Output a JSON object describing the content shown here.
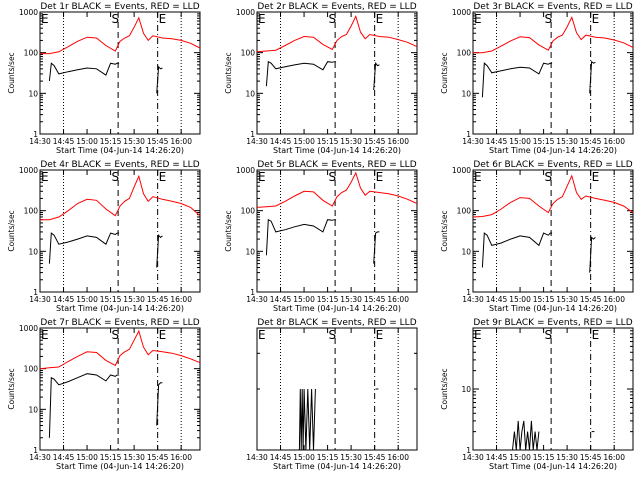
{
  "common": {
    "xlabel": "Start Time (04-Jun-14 14:26:20)",
    "ylabel": "Counts/sec",
    "x_ticks": [
      "14:30",
      "14:45",
      "15:00",
      "15:15",
      "15:30",
      "15:45",
      "16:00"
    ],
    "x_tick_values": [
      14.5,
      14.75,
      15.0,
      15.25,
      15.5,
      15.75,
      16.0
    ],
    "xlim": [
      14.5,
      16.2
    ],
    "markers": {
      "E_left": "E",
      "S": "S",
      "E_right": "E"
    },
    "colors": {
      "events": "#000000",
      "lld": "#ff0000"
    },
    "legend": "BLACK = Events, RED = LLD"
  },
  "chart_data": [
    {
      "id": "det1r",
      "type": "line",
      "title": "Det 1r BLACK = Events, RED = LLD",
      "xlabel": "Start Time (04-Jun-14 14:26:20)",
      "ylabel": "Counts/sec",
      "yscale": "log",
      "ylim": [
        1,
        1000
      ],
      "y_ticks": [
        "1",
        "10",
        "100",
        "1000"
      ],
      "vlines": {
        "dotted_left": 14.75,
        "dashed_S": 15.33,
        "dashdot_E": 15.75,
        "dotted_right": 16.0
      },
      "series": [
        {
          "color": "red",
          "x": [
            14.5,
            14.6,
            14.7,
            14.8,
            14.9,
            15.0,
            15.1,
            15.2,
            15.3,
            15.35,
            15.4,
            15.45,
            15.5,
            15.55,
            15.6,
            15.65,
            15.7,
            15.8,
            15.9,
            16.0,
            16.1,
            16.2
          ],
          "y": [
            95,
            95,
            105,
            140,
            190,
            240,
            230,
            150,
            110,
            190,
            230,
            260,
            420,
            720,
            300,
            200,
            260,
            230,
            220,
            200,
            170,
            130
          ]
        },
        {
          "color": "black",
          "x": [
            14.6,
            14.62,
            14.65,
            14.7,
            14.8,
            14.9,
            15.0,
            15.1,
            15.2,
            15.25,
            15.3,
            15.32,
            15.34
          ],
          "y": [
            20,
            55,
            48,
            30,
            34,
            38,
            42,
            40,
            28,
            55,
            52,
            55,
            55
          ]
        },
        {
          "color": "black",
          "x": [
            15.74,
            15.76,
            15.78,
            15.8
          ],
          "y": [
            10,
            45,
            40,
            42
          ]
        }
      ]
    },
    {
      "id": "det2r",
      "type": "line",
      "title": "Det 2r BLACK = Events, RED = LLD",
      "xlabel": "Start Time (04-Jun-14 14:26:20)",
      "ylabel": "Counts/sec",
      "yscale": "log",
      "ylim": [
        1,
        1000
      ],
      "y_ticks": [
        "1",
        "10",
        "100",
        "1000"
      ],
      "vlines": {
        "dotted_left": 14.75,
        "dashed_S": 15.33,
        "dashdot_E": 15.75,
        "dotted_right": 16.0
      },
      "series": [
        {
          "color": "red",
          "x": [
            14.5,
            14.6,
            14.7,
            14.8,
            14.9,
            15.0,
            15.1,
            15.2,
            15.3,
            15.35,
            15.4,
            15.45,
            15.5,
            15.55,
            15.6,
            15.65,
            15.7,
            15.8,
            15.9,
            16.0,
            16.1,
            16.2
          ],
          "y": [
            105,
            110,
            115,
            150,
            200,
            250,
            240,
            160,
            120,
            200,
            250,
            280,
            450,
            780,
            320,
            220,
            280,
            250,
            240,
            210,
            180,
            140
          ]
        },
        {
          "color": "black",
          "x": [
            14.6,
            14.62,
            14.65,
            14.7,
            14.8,
            14.9,
            15.0,
            15.1,
            15.2,
            15.25,
            15.3,
            15.32,
            15.34
          ],
          "y": [
            15,
            60,
            55,
            40,
            45,
            50,
            55,
            52,
            38,
            60,
            58,
            60,
            60
          ]
        },
        {
          "color": "black",
          "x": [
            15.74,
            15.76,
            15.78,
            15.8
          ],
          "y": [
            12,
            55,
            48,
            50
          ]
        }
      ]
    },
    {
      "id": "det3r",
      "type": "line",
      "title": "Det 3r BLACK = Events, RED = LLD",
      "xlabel": "Start Time (04-Jun-14 14:26:20)",
      "ylabel": "Counts/sec",
      "yscale": "log",
      "ylim": [
        1,
        1000
      ],
      "y_ticks": [
        "1",
        "10",
        "100",
        "1000"
      ],
      "vlines": {
        "dotted_left": 14.75,
        "dashed_S": 15.33,
        "dashdot_E": 15.75,
        "dotted_right": 16.0
      },
      "series": [
        {
          "color": "red",
          "x": [
            14.5,
            14.6,
            14.7,
            14.8,
            14.9,
            15.0,
            15.1,
            15.2,
            15.3,
            15.35,
            15.4,
            15.45,
            15.5,
            15.55,
            15.6,
            15.65,
            15.7,
            15.8,
            15.9,
            16.0,
            16.1,
            16.2
          ],
          "y": [
            100,
            100,
            110,
            145,
            195,
            245,
            235,
            155,
            115,
            195,
            240,
            270,
            430,
            740,
            310,
            210,
            270,
            240,
            230,
            205,
            175,
            135
          ]
        },
        {
          "color": "black",
          "x": [
            14.6,
            14.62,
            14.65,
            14.7,
            14.8,
            14.9,
            15.0,
            15.1,
            15.2,
            15.25,
            15.3,
            15.32,
            15.34
          ],
          "y": [
            8,
            55,
            48,
            32,
            36,
            40,
            44,
            42,
            30,
            55,
            52,
            55,
            55
          ]
        },
        {
          "color": "black",
          "x": [
            15.74,
            15.76,
            15.78,
            15.8
          ],
          "y": [
            10,
            60,
            55,
            58
          ]
        }
      ]
    },
    {
      "id": "det4r",
      "type": "line",
      "title": "Det 4r BLACK = Events, RED = LLD",
      "xlabel": "Start Time (04-Jun-14 14:26:20)",
      "ylabel": "Counts/sec",
      "yscale": "log",
      "ylim": [
        1,
        1000
      ],
      "y_ticks": [
        "1",
        "10",
        "100",
        "1000"
      ],
      "vlines": {
        "dotted_left": 14.75,
        "dashed_S": 15.33,
        "dashdot_E": 15.75,
        "dotted_right": 16.0
      },
      "series": [
        {
          "color": "red",
          "x": [
            14.5,
            14.6,
            14.7,
            14.8,
            14.9,
            15.0,
            15.1,
            15.2,
            15.3,
            15.35,
            15.4,
            15.45,
            15.5,
            15.55,
            15.6,
            15.65,
            15.7,
            15.8,
            15.9,
            16.0,
            16.1,
            16.2
          ],
          "y": [
            60,
            60,
            70,
            100,
            150,
            190,
            180,
            110,
            75,
            130,
            170,
            200,
            380,
            700,
            260,
            170,
            220,
            190,
            170,
            150,
            120,
            75
          ]
        },
        {
          "color": "black",
          "x": [
            14.6,
            14.62,
            14.65,
            14.7,
            14.8,
            14.9,
            15.0,
            15.1,
            15.2,
            15.25,
            15.3,
            15.32,
            15.34
          ],
          "y": [
            5,
            28,
            25,
            15,
            17,
            20,
            24,
            22,
            15,
            28,
            26,
            28,
            28
          ]
        },
        {
          "color": "black",
          "x": [
            15.74,
            15.76,
            15.78,
            15.8
          ],
          "y": [
            4,
            25,
            22,
            24
          ]
        }
      ]
    },
    {
      "id": "det5r",
      "type": "line",
      "title": "Det 5r BLACK = Events, RED = LLD",
      "xlabel": "Start Time (04-Jun-14 14:26:20)",
      "ylabel": "Counts/sec",
      "yscale": "log",
      "ylim": [
        1,
        1000
      ],
      "y_ticks": [
        "1",
        "10",
        "100",
        "1000"
      ],
      "vlines": {
        "dotted_left": 14.75,
        "dashed_S": 15.33,
        "dashdot_E": 15.75,
        "dotted_right": 16.0
      },
      "series": [
        {
          "color": "red",
          "x": [
            14.5,
            14.6,
            14.7,
            14.8,
            14.9,
            15.0,
            15.1,
            15.2,
            15.3,
            15.35,
            15.4,
            15.45,
            15.5,
            15.55,
            15.6,
            15.65,
            15.7,
            15.8,
            15.9,
            16.0,
            16.1,
            16.2
          ],
          "y": [
            120,
            125,
            130,
            170,
            230,
            300,
            290,
            180,
            130,
            220,
            280,
            320,
            500,
            850,
            360,
            240,
            300,
            280,
            260,
            230,
            190,
            150
          ]
        },
        {
          "color": "black",
          "x": [
            14.6,
            14.62,
            14.65,
            14.7,
            14.8,
            14.9,
            15.0,
            15.1,
            15.2,
            15.25,
            15.3,
            15.32,
            15.34
          ],
          "y": [
            8,
            60,
            55,
            30,
            34,
            40,
            46,
            42,
            30,
            60,
            58,
            60,
            60
          ]
        },
        {
          "color": "black",
          "x": [
            15.74,
            15.76,
            15.78,
            15.8
          ],
          "y": [
            5,
            28,
            30,
            30
          ]
        }
      ]
    },
    {
      "id": "det6r",
      "type": "line",
      "title": "Det 6r BLACK = Events, RED = LLD",
      "xlabel": "Start Time (04-Jun-14 14:26:20)",
      "ylabel": "Counts/sec",
      "yscale": "log",
      "ylim": [
        1,
        1000
      ],
      "y_ticks": [
        "1",
        "10",
        "100",
        "1000"
      ],
      "vlines": {
        "dotted_left": 14.75,
        "dashed_S": 15.33,
        "dashdot_E": 15.75,
        "dotted_right": 16.0
      },
      "series": [
        {
          "color": "red",
          "x": [
            14.5,
            14.6,
            14.7,
            14.8,
            14.9,
            15.0,
            15.1,
            15.2,
            15.3,
            15.35,
            15.4,
            15.45,
            15.5,
            15.55,
            15.6,
            15.65,
            15.7,
            15.8,
            15.9,
            16.0,
            16.1,
            16.2
          ],
          "y": [
            70,
            72,
            80,
            110,
            160,
            210,
            200,
            130,
            90,
            150,
            190,
            220,
            400,
            720,
            280,
            190,
            230,
            200,
            180,
            160,
            130,
            90
          ]
        },
        {
          "color": "black",
          "x": [
            14.6,
            14.62,
            14.65,
            14.7,
            14.8,
            14.9,
            15.0,
            15.1,
            15.2,
            15.25,
            15.3,
            15.32,
            15.34
          ],
          "y": [
            4,
            28,
            25,
            14,
            16,
            20,
            24,
            22,
            14,
            28,
            25,
            28,
            28
          ]
        },
        {
          "color": "black",
          "x": [
            15.74,
            15.76,
            15.78,
            15.8
          ],
          "y": [
            3,
            22,
            20,
            22
          ]
        }
      ]
    },
    {
      "id": "det7r",
      "type": "line",
      "title": "Det 7r BLACK = Events, RED = LLD",
      "xlabel": "Start Time (04-Jun-14 14:26:20)",
      "ylabel": "Counts/sec",
      "yscale": "log",
      "ylim": [
        1,
        1000
      ],
      "y_ticks": [
        "1",
        "10",
        "100",
        "1000"
      ],
      "vlines": {
        "dotted_left": 14.75,
        "dashed_S": 15.33,
        "dashdot_E": 15.75,
        "dotted_right": 16.0
      },
      "series": [
        {
          "color": "red",
          "x": [
            14.5,
            14.6,
            14.7,
            14.8,
            14.9,
            15.0,
            15.1,
            15.2,
            15.3,
            15.35,
            15.4,
            15.45,
            15.5,
            15.55,
            15.6,
            15.65,
            15.7,
            15.8,
            15.9,
            16.0,
            16.1,
            16.2
          ],
          "y": [
            100,
            105,
            110,
            150,
            200,
            260,
            250,
            160,
            120,
            210,
            260,
            300,
            500,
            840,
            340,
            220,
            280,
            260,
            240,
            210,
            175,
            140
          ]
        },
        {
          "color": "black",
          "x": [
            14.6,
            14.62,
            14.65,
            14.7,
            14.8,
            14.9,
            15.0,
            15.1,
            15.2,
            15.25,
            15.3,
            15.32,
            15.34
          ],
          "y": [
            2,
            60,
            55,
            40,
            48,
            60,
            75,
            70,
            50,
            70,
            65,
            70,
            70
          ]
        },
        {
          "color": "black",
          "x": [
            15.74,
            15.76,
            15.78,
            15.8
          ],
          "y": [
            4,
            40,
            45,
            45
          ]
        }
      ]
    },
    {
      "id": "det8r",
      "type": "line",
      "title": "Det 8r BLACK = Events, RED = LLD",
      "xlabel": "Start Time (04-Jun-14 14:26:20)",
      "ylabel": "",
      "yscale": "log",
      "ylim": [
        1,
        4
      ],
      "y_ticks": [],
      "vlines": {
        "dotted_left": 14.75,
        "dashed_S": 15.33,
        "dashdot_E": 15.75,
        "dotted_right": 16.0
      },
      "series": [
        {
          "color": "black",
          "x": [
            14.95,
            14.96,
            14.97,
            14.98,
            14.99,
            15.0,
            15.02,
            15.04,
            15.06,
            15.08,
            15.1,
            15.12
          ],
          "y": [
            1,
            2,
            1,
            2,
            1,
            2,
            1,
            2,
            1,
            2,
            1,
            2
          ]
        },
        {
          "color": "black",
          "x": [
            15.76,
            15.79
          ],
          "y": [
            2,
            2
          ]
        }
      ]
    },
    {
      "id": "det9r",
      "type": "line",
      "title": "Det 9r BLACK = Events, RED = LLD",
      "xlabel": "Start Time (04-Jun-14 14:26:20)",
      "ylabel": "Counts/sec",
      "yscale": "log",
      "ylim": [
        1,
        100
      ],
      "y_ticks": [
        "1",
        "10"
      ],
      "vlines": {
        "dotted_left": 14.75,
        "dashed_S": 15.33,
        "dashdot_E": 15.75,
        "dotted_right": 16.0
      },
      "series": [
        {
          "color": "black",
          "x": [
            14.92,
            14.94,
            14.96,
            14.98,
            15.0,
            15.02,
            15.04,
            15.06,
            15.08,
            15.1,
            15.12,
            15.14,
            15.16,
            15.18,
            15.2
          ],
          "y": [
            1,
            2,
            1,
            3,
            1,
            2,
            3,
            1,
            2,
            1,
            3,
            1,
            2,
            1,
            2
          ]
        },
        {
          "color": "black",
          "x": [
            15.76,
            15.79
          ],
          "y": [
            2,
            2
          ]
        }
      ]
    }
  ]
}
